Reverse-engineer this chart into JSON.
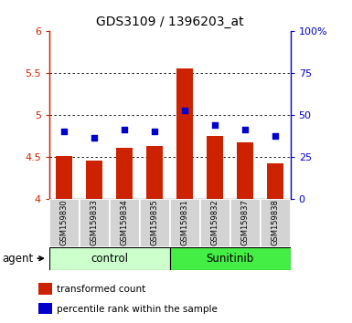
{
  "title": "GDS3109 / 1396203_at",
  "samples": [
    "GSM159830",
    "GSM159833",
    "GSM159834",
    "GSM159835",
    "GSM159831",
    "GSM159832",
    "GSM159837",
    "GSM159838"
  ],
  "bar_values": [
    4.51,
    4.45,
    4.6,
    4.63,
    5.55,
    4.75,
    4.67,
    4.42
  ],
  "dot_values": [
    4.8,
    4.73,
    4.82,
    4.8,
    5.05,
    4.88,
    4.82,
    4.75
  ],
  "ylim": [
    4.0,
    6.0
  ],
  "yticks": [
    4.0,
    4.5,
    5.0,
    5.5,
    6.0
  ],
  "ytick_labels": [
    "4",
    "4.5",
    "5",
    "5.5",
    "6"
  ],
  "right_yticks": [
    0,
    25,
    50,
    75,
    100
  ],
  "right_ytick_labels": [
    "0",
    "25",
    "50",
    "75",
    "100%"
  ],
  "bar_color": "#cc2200",
  "dot_color": "#0000cc",
  "group_labels": [
    "control",
    "Sunitinib"
  ],
  "group_ranges": [
    [
      0,
      4
    ],
    [
      4,
      8
    ]
  ],
  "group_colors": [
    "#ccffcc",
    "#44ee44"
  ],
  "agent_label": "agent",
  "legend_items": [
    {
      "color": "#cc2200",
      "label": "transformed count"
    },
    {
      "color": "#0000cc",
      "label": "percentile rank within the sample"
    }
  ],
  "grid_color": "black",
  "bar_bottom": 4.0,
  "right_axis_color": "#0000cc",
  "left_axis_color": "#cc2200",
  "grid_yticks": [
    4.5,
    5.0,
    5.5
  ]
}
